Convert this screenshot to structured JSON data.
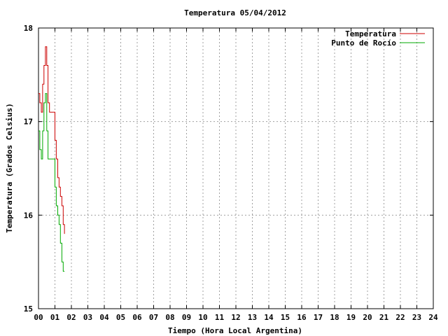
{
  "chart_data": {
    "type": "line",
    "title": "Temperatura 05/04/2012",
    "xlabel": "Tiempo (Hora Local Argentina)",
    "ylabel": "Temperatura (Grados Celsius)",
    "xlim": [
      0,
      24
    ],
    "ylim": [
      15,
      18
    ],
    "x_ticks": [
      "00",
      "01",
      "02",
      "03",
      "04",
      "05",
      "06",
      "07",
      "08",
      "09",
      "10",
      "11",
      "12",
      "13",
      "14",
      "15",
      "16",
      "17",
      "18",
      "19",
      "20",
      "21",
      "22",
      "23",
      "24"
    ],
    "y_ticks": [
      "15",
      "16",
      "17",
      "18"
    ],
    "grid": true,
    "legend_position": "top-right",
    "series": [
      {
        "name": "Temperatura",
        "color": "#cc0000",
        "x": [
          0.0,
          0.08,
          0.17,
          0.25,
          0.33,
          0.42,
          0.5,
          0.58,
          0.67,
          0.75,
          0.83,
          0.92,
          1.0,
          1.08,
          1.17,
          1.25,
          1.33,
          1.42,
          1.5,
          1.58
        ],
        "y": [
          17.3,
          17.2,
          17.1,
          17.4,
          17.6,
          17.8,
          17.6,
          17.2,
          17.1,
          17.1,
          17.1,
          17.1,
          16.8,
          16.6,
          16.4,
          16.3,
          16.2,
          16.1,
          15.9,
          15.8
        ]
      },
      {
        "name": "Punto de Rocío",
        "color": "#00aa00",
        "x": [
          0.0,
          0.08,
          0.17,
          0.25,
          0.33,
          0.42,
          0.5,
          0.58,
          0.67,
          0.75,
          0.83,
          0.92,
          1.0,
          1.08,
          1.17,
          1.25,
          1.33,
          1.42,
          1.5,
          1.58
        ],
        "y": [
          16.9,
          16.7,
          16.6,
          16.9,
          17.2,
          17.3,
          16.9,
          16.6,
          16.6,
          16.6,
          16.6,
          16.6,
          16.3,
          16.1,
          16.0,
          15.9,
          15.7,
          15.5,
          15.4,
          15.4
        ]
      }
    ]
  }
}
